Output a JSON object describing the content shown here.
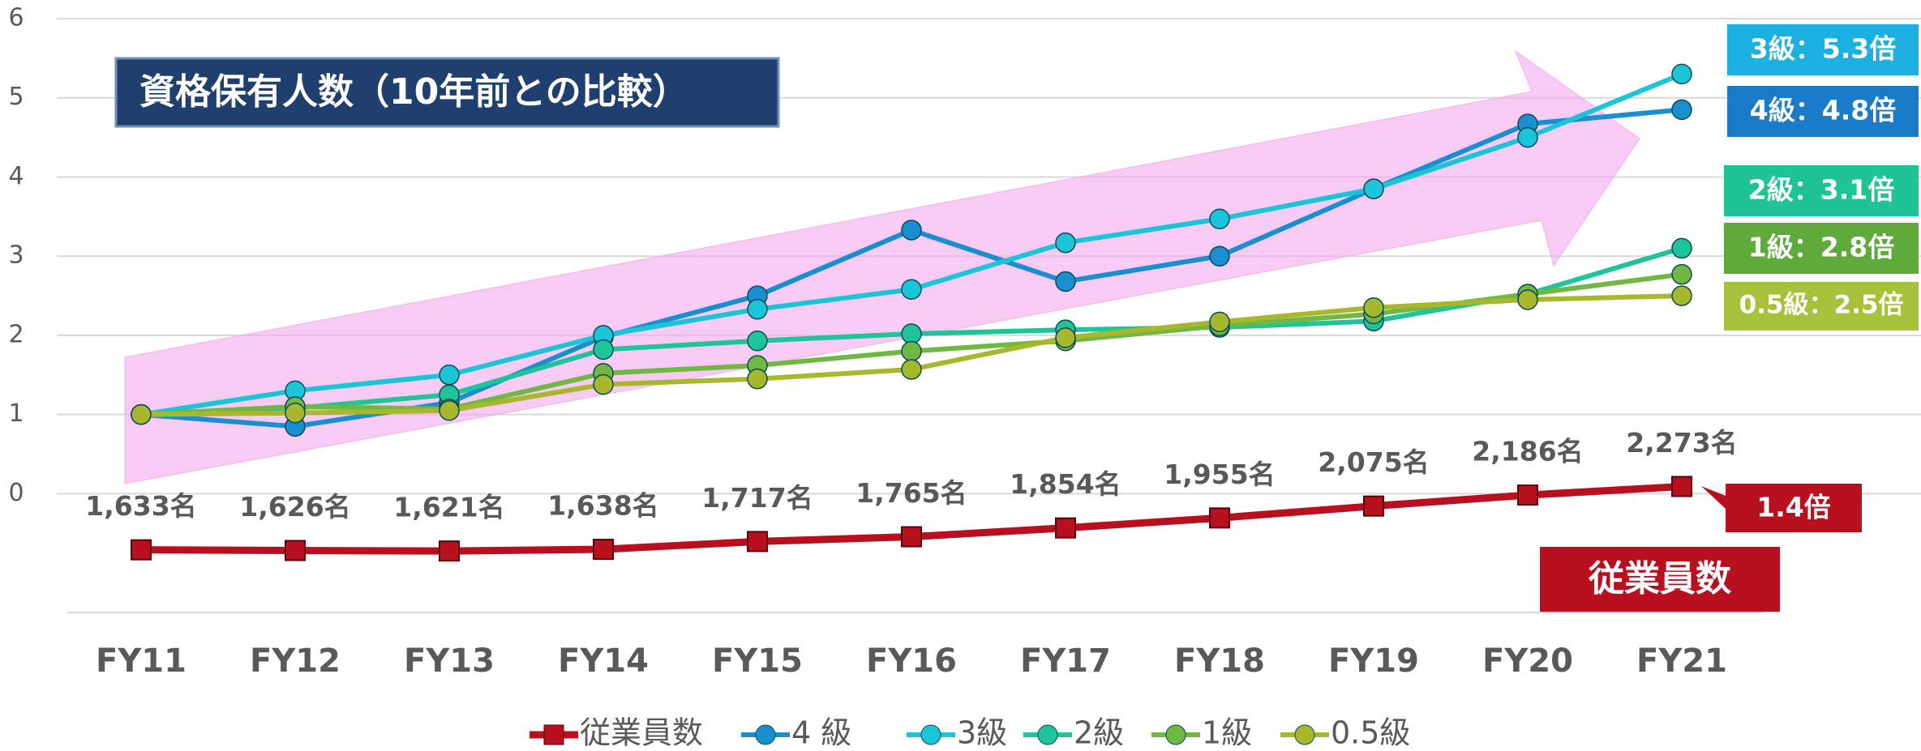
{
  "chart_data": {
    "type": "line",
    "categories": [
      "FY11",
      "FY12",
      "FY13",
      "FY14",
      "FY15",
      "FY16",
      "FY17",
      "FY18",
      "FY19",
      "FY20",
      "FY21"
    ],
    "ylim": [
      -1.5,
      6
    ],
    "yticks": [
      0,
      1,
      2,
      3,
      4,
      5,
      6
    ],
    "y2lim": [
      1000,
      7000
    ],
    "grid": true,
    "legend": "bottom",
    "series": [
      {
        "name": "従業員数",
        "color": "#b8101e",
        "marker": "square",
        "axis": "y2",
        "values": [
          1633,
          1626,
          1621,
          1638,
          1717,
          1765,
          1854,
          1955,
          2075,
          2186,
          2273
        ],
        "value_labels": [
          "1,633名",
          "1,626名",
          "1,621名",
          "1,638名",
          "1,717名",
          "1,765名",
          "1,854名",
          "1,955名",
          "2,075名",
          "2,186名",
          "2,273名"
        ]
      },
      {
        "name": "4 級",
        "color": "#1a8fd0",
        "marker": "circle",
        "values": [
          1,
          0.85,
          1.15,
          1.98,
          2.5,
          3.33,
          2.68,
          3.0,
          3.85,
          4.67,
          4.85
        ]
      },
      {
        "name": "3級",
        "color": "#1cc4d8",
        "marker": "circle",
        "values": [
          1,
          1.3,
          1.5,
          2.0,
          2.33,
          2.58,
          3.17,
          3.47,
          3.85,
          4.5,
          5.3
        ]
      },
      {
        "name": "2級",
        "color": "#20c49a",
        "marker": "circle",
        "values": [
          1,
          1.08,
          1.25,
          1.82,
          1.93,
          2.02,
          2.07,
          2.1,
          2.18,
          2.52,
          3.1
        ]
      },
      {
        "name": "1級",
        "color": "#70b843",
        "marker": "circle",
        "values": [
          1,
          1.1,
          1.07,
          1.52,
          1.62,
          1.8,
          1.93,
          2.12,
          2.27,
          2.52,
          2.77
        ]
      },
      {
        "name": "0.5級",
        "color": "#a8b82c",
        "marker": "circle",
        "values": [
          1,
          1.02,
          1.05,
          1.38,
          1.45,
          1.57,
          1.97,
          2.17,
          2.35,
          2.45,
          2.5
        ]
      }
    ],
    "annotations": [
      "資格保有人数（10年前との比較）",
      "3級：5.3倍",
      "4級：4.8倍",
      "2級：3.1倍",
      "1級：2.8倍",
      "0.5級：2.5倍",
      "1.4倍",
      "従業員数"
    ]
  }
}
